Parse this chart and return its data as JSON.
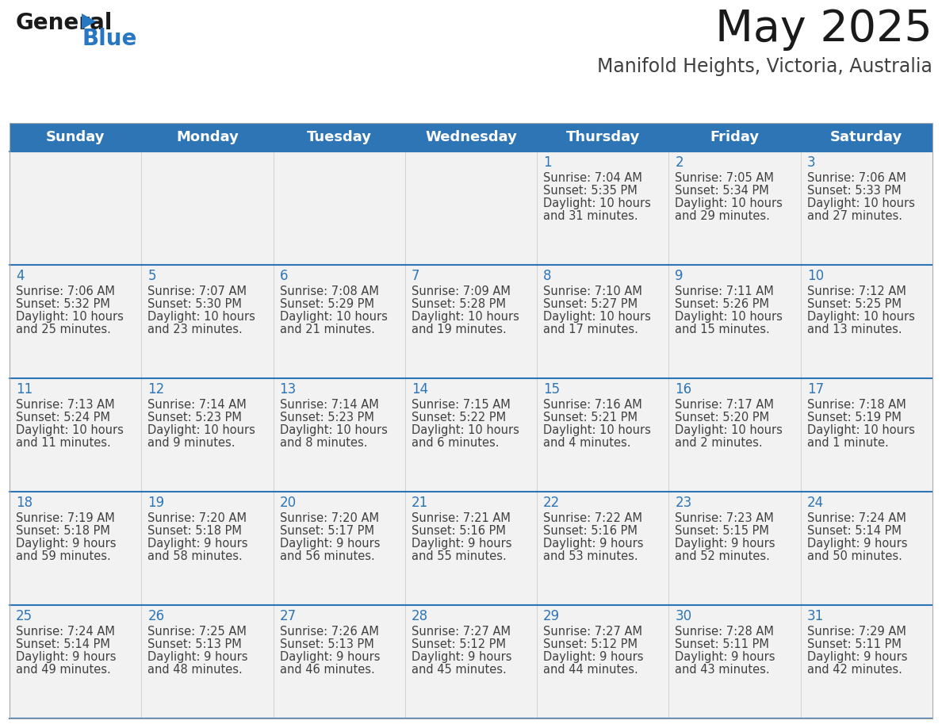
{
  "title": "May 2025",
  "subtitle": "Manifold Heights, Victoria, Australia",
  "days_of_week": [
    "Sunday",
    "Monday",
    "Tuesday",
    "Wednesday",
    "Thursday",
    "Friday",
    "Saturday"
  ],
  "header_bg": "#2E75B6",
  "header_text": "#FFFFFF",
  "cell_bg": "#F2F2F2",
  "cell_bg_white": "#FFFFFF",
  "cell_border": "#2E75B6",
  "day_number_color": "#2E75B6",
  "cell_text_color": "#404040",
  "title_color": "#1A1A1A",
  "subtitle_color": "#404040",
  "logo_general_color": "#1A1A1A",
  "logo_blue_color": "#2777C2",
  "calendar": [
    [
      null,
      null,
      null,
      null,
      {
        "day": 1,
        "sunrise": "7:04 AM",
        "sunset": "5:35 PM",
        "daylight": "10 hours",
        "daylight2": "and 31 minutes."
      },
      {
        "day": 2,
        "sunrise": "7:05 AM",
        "sunset": "5:34 PM",
        "daylight": "10 hours",
        "daylight2": "and 29 minutes."
      },
      {
        "day": 3,
        "sunrise": "7:06 AM",
        "sunset": "5:33 PM",
        "daylight": "10 hours",
        "daylight2": "and 27 minutes."
      }
    ],
    [
      {
        "day": 4,
        "sunrise": "7:06 AM",
        "sunset": "5:32 PM",
        "daylight": "10 hours",
        "daylight2": "and 25 minutes."
      },
      {
        "day": 5,
        "sunrise": "7:07 AM",
        "sunset": "5:30 PM",
        "daylight": "10 hours",
        "daylight2": "and 23 minutes."
      },
      {
        "day": 6,
        "sunrise": "7:08 AM",
        "sunset": "5:29 PM",
        "daylight": "10 hours",
        "daylight2": "and 21 minutes."
      },
      {
        "day": 7,
        "sunrise": "7:09 AM",
        "sunset": "5:28 PM",
        "daylight": "10 hours",
        "daylight2": "and 19 minutes."
      },
      {
        "day": 8,
        "sunrise": "7:10 AM",
        "sunset": "5:27 PM",
        "daylight": "10 hours",
        "daylight2": "and 17 minutes."
      },
      {
        "day": 9,
        "sunrise": "7:11 AM",
        "sunset": "5:26 PM",
        "daylight": "10 hours",
        "daylight2": "and 15 minutes."
      },
      {
        "day": 10,
        "sunrise": "7:12 AM",
        "sunset": "5:25 PM",
        "daylight": "10 hours",
        "daylight2": "and 13 minutes."
      }
    ],
    [
      {
        "day": 11,
        "sunrise": "7:13 AM",
        "sunset": "5:24 PM",
        "daylight": "10 hours",
        "daylight2": "and 11 minutes."
      },
      {
        "day": 12,
        "sunrise": "7:14 AM",
        "sunset": "5:23 PM",
        "daylight": "10 hours",
        "daylight2": "and 9 minutes."
      },
      {
        "day": 13,
        "sunrise": "7:14 AM",
        "sunset": "5:23 PM",
        "daylight": "10 hours",
        "daylight2": "and 8 minutes."
      },
      {
        "day": 14,
        "sunrise": "7:15 AM",
        "sunset": "5:22 PM",
        "daylight": "10 hours",
        "daylight2": "and 6 minutes."
      },
      {
        "day": 15,
        "sunrise": "7:16 AM",
        "sunset": "5:21 PM",
        "daylight": "10 hours",
        "daylight2": "and 4 minutes."
      },
      {
        "day": 16,
        "sunrise": "7:17 AM",
        "sunset": "5:20 PM",
        "daylight": "10 hours",
        "daylight2": "and 2 minutes."
      },
      {
        "day": 17,
        "sunrise": "7:18 AM",
        "sunset": "5:19 PM",
        "daylight": "10 hours",
        "daylight2": "and 1 minute."
      }
    ],
    [
      {
        "day": 18,
        "sunrise": "7:19 AM",
        "sunset": "5:18 PM",
        "daylight": "9 hours",
        "daylight2": "and 59 minutes."
      },
      {
        "day": 19,
        "sunrise": "7:20 AM",
        "sunset": "5:18 PM",
        "daylight": "9 hours",
        "daylight2": "and 58 minutes."
      },
      {
        "day": 20,
        "sunrise": "7:20 AM",
        "sunset": "5:17 PM",
        "daylight": "9 hours",
        "daylight2": "and 56 minutes."
      },
      {
        "day": 21,
        "sunrise": "7:21 AM",
        "sunset": "5:16 PM",
        "daylight": "9 hours",
        "daylight2": "and 55 minutes."
      },
      {
        "day": 22,
        "sunrise": "7:22 AM",
        "sunset": "5:16 PM",
        "daylight": "9 hours",
        "daylight2": "and 53 minutes."
      },
      {
        "day": 23,
        "sunrise": "7:23 AM",
        "sunset": "5:15 PM",
        "daylight": "9 hours",
        "daylight2": "and 52 minutes."
      },
      {
        "day": 24,
        "sunrise": "7:24 AM",
        "sunset": "5:14 PM",
        "daylight": "9 hours",
        "daylight2": "and 50 minutes."
      }
    ],
    [
      {
        "day": 25,
        "sunrise": "7:24 AM",
        "sunset": "5:14 PM",
        "daylight": "9 hours",
        "daylight2": "and 49 minutes."
      },
      {
        "day": 26,
        "sunrise": "7:25 AM",
        "sunset": "5:13 PM",
        "daylight": "9 hours",
        "daylight2": "and 48 minutes."
      },
      {
        "day": 27,
        "sunrise": "7:26 AM",
        "sunset": "5:13 PM",
        "daylight": "9 hours",
        "daylight2": "and 46 minutes."
      },
      {
        "day": 28,
        "sunrise": "7:27 AM",
        "sunset": "5:12 PM",
        "daylight": "9 hours",
        "daylight2": "and 45 minutes."
      },
      {
        "day": 29,
        "sunrise": "7:27 AM",
        "sunset": "5:12 PM",
        "daylight": "9 hours",
        "daylight2": "and 44 minutes."
      },
      {
        "day": 30,
        "sunrise": "7:28 AM",
        "sunset": "5:11 PM",
        "daylight": "9 hours",
        "daylight2": "and 43 minutes."
      },
      {
        "day": 31,
        "sunrise": "7:29 AM",
        "sunset": "5:11 PM",
        "daylight": "9 hours",
        "daylight2": "and 42 minutes."
      }
    ]
  ],
  "num_weeks": 5,
  "num_cols": 7,
  "fig_width": 11.88,
  "fig_height": 9.18
}
